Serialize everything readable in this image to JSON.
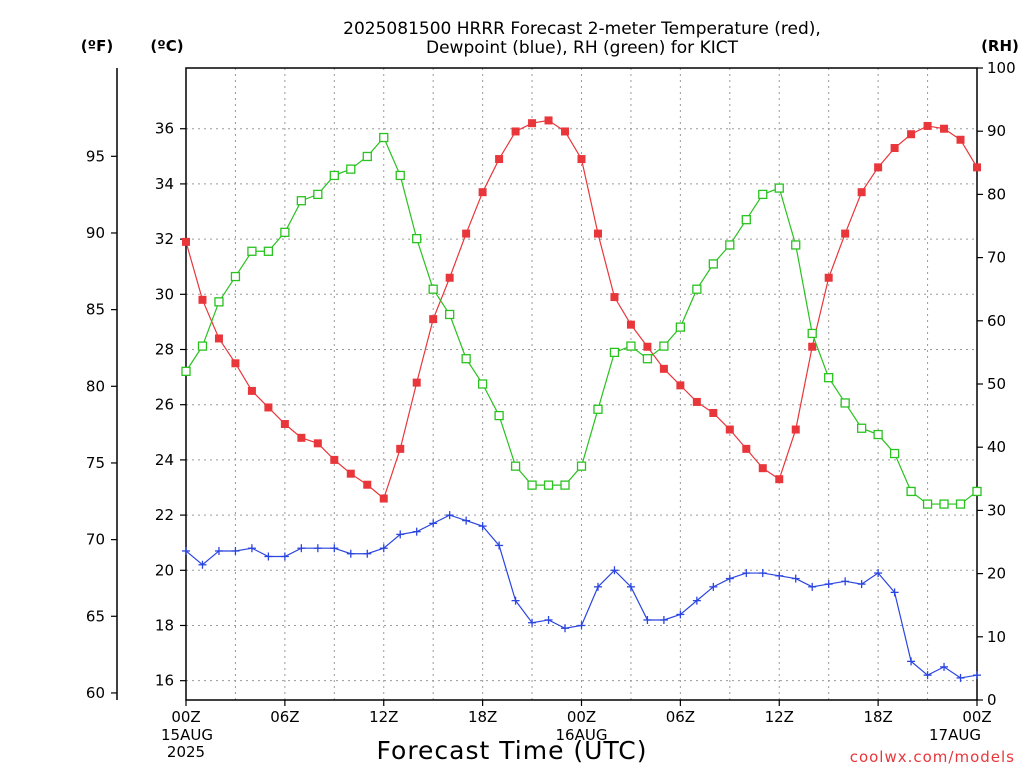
{
  "chart_data": {
    "type": "line",
    "title_lines": [
      "2025081500 HRRR Forecast 2-meter Temperature (red),",
      "Dewpoint (blue), RH (green) for KICT"
    ],
    "xlabel": "Forecast Time (UTC)",
    "credit": "coolwx.com/models",
    "axes": {
      "celsius": {
        "unit": "(ºC)",
        "range": [
          15.3,
          38.2
        ],
        "ticks": [
          16,
          18,
          20,
          22,
          24,
          26,
          28,
          30,
          32,
          34,
          36
        ]
      },
      "fahrenheit": {
        "unit": "(ºF)",
        "range": [
          59.54,
          100.76
        ],
        "ticks": [
          60,
          65,
          70,
          75,
          80,
          85,
          90,
          95
        ]
      },
      "rh": {
        "unit": "(RH)",
        "range": [
          0,
          100
        ],
        "ticks": [
          0,
          10,
          20,
          30,
          40,
          50,
          60,
          70,
          80,
          90,
          100
        ]
      }
    },
    "x": {
      "range": [
        0,
        48
      ],
      "ticks": [
        {
          "hour": 0,
          "label": "00Z",
          "sub1": "15AUG",
          "sub2": "2025"
        },
        {
          "hour": 6,
          "label": "06Z",
          "sub1": "",
          "sub2": ""
        },
        {
          "hour": 12,
          "label": "12Z",
          "sub1": "",
          "sub2": ""
        },
        {
          "hour": 18,
          "label": "18Z",
          "sub1": "",
          "sub2": ""
        },
        {
          "hour": 24,
          "label": "00Z",
          "sub1": "16AUG",
          "sub2": ""
        },
        {
          "hour": 30,
          "label": "06Z",
          "sub1": "",
          "sub2": ""
        },
        {
          "hour": 36,
          "label": "12Z",
          "sub1": "",
          "sub2": ""
        },
        {
          "hour": 42,
          "label": "18Z",
          "sub1": "",
          "sub2": ""
        },
        {
          "hour": 48,
          "label": "00Z",
          "sub1": "17AUG",
          "sub2": ""
        }
      ]
    },
    "grid": true,
    "series": [
      {
        "name": "Temperature",
        "axis": "celsius",
        "color": "#e8363b",
        "marker": "filled-square",
        "values": [
          31.9,
          29.8,
          28.4,
          27.5,
          26.5,
          25.9,
          25.3,
          24.8,
          24.6,
          24.0,
          23.5,
          23.1,
          22.6,
          24.4,
          26.8,
          29.1,
          30.6,
          32.2,
          33.7,
          34.9,
          35.9,
          36.2,
          36.3,
          35.9,
          34.9,
          32.2,
          29.9,
          28.9,
          28.1,
          27.3,
          26.7,
          26.1,
          25.7,
          25.1,
          24.4,
          23.7,
          23.3,
          25.1,
          28.1,
          30.6,
          32.2,
          33.7,
          34.6,
          35.3,
          35.8,
          36.1,
          36.0,
          35.6,
          34.6
        ]
      },
      {
        "name": "Dewpoint",
        "axis": "celsius",
        "color": "#2b45e0",
        "marker": "plus",
        "values": [
          20.7,
          20.2,
          20.7,
          20.7,
          20.8,
          20.5,
          20.5,
          20.8,
          20.8,
          20.8,
          20.6,
          20.6,
          20.8,
          21.3,
          21.4,
          21.7,
          22.0,
          21.8,
          21.6,
          20.9,
          18.9,
          18.1,
          18.2,
          17.9,
          18.0,
          19.4,
          20.0,
          19.4,
          18.2,
          18.2,
          18.4,
          18.9,
          19.4,
          19.7,
          19.9,
          19.9,
          19.8,
          19.7,
          19.4,
          19.5,
          19.6,
          19.5,
          19.9,
          19.2,
          16.7,
          16.2,
          16.5,
          16.1,
          16.2
        ]
      },
      {
        "name": "RH",
        "axis": "rh",
        "color": "#29c21f",
        "marker": "open-square",
        "values": [
          52,
          56,
          63,
          67,
          71,
          71,
          74,
          79,
          80,
          83,
          84,
          86,
          89,
          83,
          73,
          65,
          61,
          54,
          50,
          45,
          37,
          34,
          34,
          34,
          37,
          46,
          55,
          56,
          54,
          56,
          59,
          65,
          69,
          72,
          76,
          80,
          81,
          72,
          58,
          51,
          47,
          43,
          42,
          39,
          33,
          31,
          31,
          31,
          33
        ]
      }
    ]
  }
}
